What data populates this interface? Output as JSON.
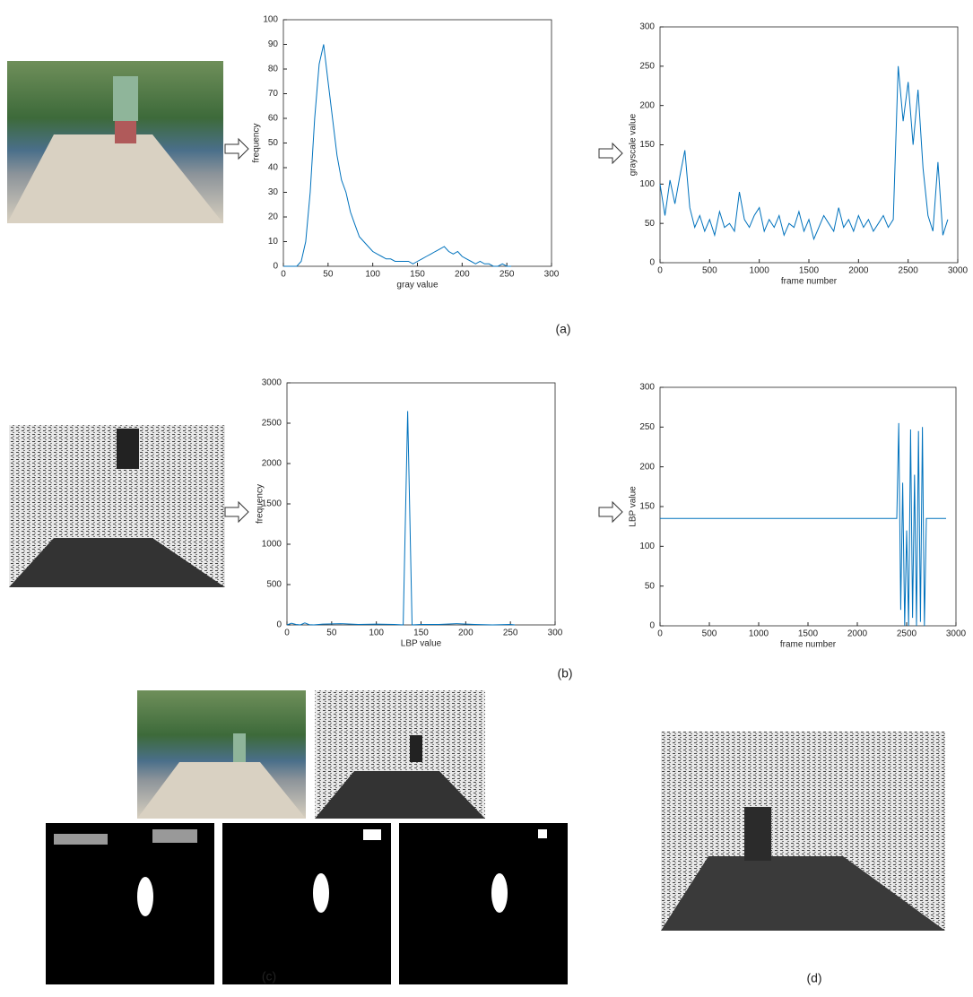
{
  "chart_data": [
    {
      "type": "line",
      "xlabel": "gray value",
      "ylabel": "frequency",
      "color": "#0072bd",
      "x": [
        0,
        5,
        10,
        15,
        20,
        25,
        30,
        35,
        40,
        45,
        50,
        55,
        60,
        65,
        70,
        75,
        80,
        85,
        90,
        95,
        100,
        105,
        110,
        115,
        120,
        125,
        130,
        135,
        140,
        145,
        150,
        155,
        160,
        165,
        170,
        175,
        180,
        185,
        190,
        195,
        200,
        205,
        210,
        215,
        220,
        225,
        230,
        235,
        240,
        245,
        250,
        255
      ],
      "values": [
        0,
        0,
        0,
        0,
        2,
        10,
        30,
        60,
        82,
        90,
        75,
        60,
        45,
        35,
        30,
        22,
        17,
        12,
        10,
        8,
        6,
        5,
        4,
        3,
        3,
        2,
        2,
        2,
        2,
        1,
        2,
        3,
        4,
        5,
        6,
        7,
        8,
        6,
        5,
        6,
        4,
        3,
        2,
        1,
        2,
        1,
        1,
        0,
        0,
        1,
        0,
        0
      ],
      "xlim": [
        0,
        300
      ],
      "xticks": [
        0,
        50,
        100,
        150,
        200,
        250,
        300
      ],
      "ylim": [
        0,
        100
      ],
      "yticks": [
        0,
        10,
        20,
        30,
        40,
        50,
        60,
        70,
        80,
        90,
        100
      ]
    },
    {
      "type": "line",
      "xlabel": "frame number",
      "ylabel": "grayscale value",
      "color": "#0072bd",
      "x": [
        0,
        50,
        100,
        150,
        200,
        250,
        300,
        350,
        400,
        450,
        500,
        550,
        600,
        650,
        700,
        750,
        800,
        850,
        900,
        950,
        1000,
        1050,
        1100,
        1150,
        1200,
        1250,
        1300,
        1350,
        1400,
        1450,
        1500,
        1550,
        1600,
        1650,
        1700,
        1750,
        1800,
        1850,
        1900,
        1950,
        2000,
        2050,
        2100,
        2150,
        2200,
        2250,
        2300,
        2350,
        2400,
        2450,
        2500,
        2550,
        2600,
        2650,
        2700,
        2750,
        2800,
        2850,
        2900
      ],
      "values": [
        100,
        60,
        105,
        75,
        110,
        143,
        70,
        45,
        60,
        40,
        55,
        35,
        65,
        45,
        50,
        40,
        90,
        55,
        45,
        60,
        70,
        40,
        55,
        45,
        60,
        35,
        50,
        45,
        65,
        40,
        55,
        30,
        45,
        60,
        50,
        40,
        70,
        45,
        55,
        40,
        60,
        45,
        55,
        40,
        50,
        60,
        45,
        55,
        250,
        180,
        230,
        150,
        220,
        120,
        60,
        40,
        128,
        35,
        55
      ],
      "xlim": [
        0,
        3000
      ],
      "xticks": [
        0,
        500,
        1000,
        1500,
        2000,
        2500,
        3000
      ],
      "ylim": [
        0,
        300
      ],
      "yticks": [
        0,
        50,
        100,
        150,
        200,
        250,
        300
      ]
    },
    {
      "type": "line",
      "xlabel": "LBP value",
      "ylabel": "frequency",
      "color": "#0072bd",
      "x": [
        0,
        5,
        10,
        15,
        20,
        25,
        30,
        40,
        60,
        80,
        100,
        120,
        130,
        135,
        140,
        150,
        170,
        190,
        210,
        230,
        250,
        255
      ],
      "values": [
        0,
        20,
        5,
        0,
        25,
        3,
        0,
        10,
        15,
        5,
        10,
        5,
        0,
        2650,
        0,
        5,
        5,
        15,
        5,
        0,
        5,
        0
      ],
      "xlim": [
        0,
        300
      ],
      "xticks": [
        0,
        50,
        100,
        150,
        200,
        250,
        300
      ],
      "ylim": [
        0,
        3000
      ],
      "yticks": [
        0,
        500,
        1000,
        1500,
        2000,
        2500,
        3000
      ]
    },
    {
      "type": "line",
      "xlabel": "frame number",
      "ylabel": "LBP value",
      "color": "#0072bd",
      "x": [
        0,
        2400,
        2420,
        2440,
        2460,
        2480,
        2500,
        2520,
        2540,
        2560,
        2580,
        2600,
        2620,
        2640,
        2660,
        2680,
        2700,
        2900
      ],
      "values": [
        135,
        135,
        255,
        20,
        180,
        0,
        120,
        0,
        247,
        10,
        190,
        0,
        245,
        5,
        250,
        0,
        135,
        135
      ],
      "xlim": [
        0,
        3000
      ],
      "xticks": [
        0,
        500,
        1000,
        1500,
        2000,
        2500,
        3000
      ],
      "ylim": [
        0,
        300
      ],
      "yticks": [
        0,
        50,
        100,
        150,
        200,
        250,
        300
      ]
    }
  ],
  "panel_labels": [
    "(a)",
    "(b)",
    "(c)",
    "(d)"
  ]
}
